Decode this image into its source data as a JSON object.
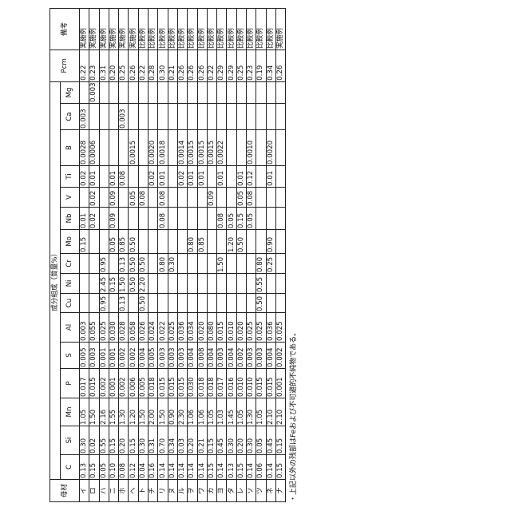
{
  "table": {
    "base_header": "母材",
    "group_header": "成分組成（質量%）",
    "columns": [
      "C",
      "Si",
      "Mn",
      "P",
      "S",
      "Al",
      "Cu",
      "Ni",
      "Cr",
      "Mo",
      "Nb",
      "V",
      "Ti",
      "B",
      "Ca",
      "Mg"
    ],
    "pcm_header": "Pcm",
    "remark_header": "備考",
    "rows": [
      {
        "name": "イ",
        "v": [
          "0.13",
          "0.30",
          "1.05",
          "0.017",
          "0.005",
          "0.003",
          null,
          null,
          null,
          "0.15",
          "0.01",
          null,
          "0.02",
          "0.0028",
          "0.003",
          null
        ],
        "pcm": "0.22",
        "remark": "実施例"
      },
      {
        "name": "ロ",
        "v": [
          "0.15",
          "0.02",
          "1.50",
          "0.015",
          "0.003",
          "0.055",
          null,
          null,
          null,
          null,
          "0.02",
          "0.02",
          "0.01",
          "0.0006",
          null,
          "0.003"
        ],
        "pcm": "0.23",
        "remark": "実施例"
      },
      {
        "name": "ハ",
        "v": [
          "0.05",
          "0.55",
          "2.16",
          "0.002",
          "0.001",
          "0.025",
          "0.95",
          "2.45",
          "0.95",
          null,
          null,
          null,
          null,
          null,
          null,
          null
        ],
        "pcm": "0.31",
        "remark": "実施例"
      },
      {
        "name": "ニ",
        "v": [
          "0.10",
          "0.15",
          "1.55",
          "0.001",
          "0.001",
          "0.030",
          null,
          "0.15",
          null,
          "0.05",
          "0.09",
          "0.09",
          "0.01",
          null,
          null,
          null
        ],
        "pcm": "0.20",
        "remark": "実施例"
      },
      {
        "name": "ホ",
        "v": [
          "0.08",
          "0.20",
          "1.30",
          "0.002",
          "0.002",
          "0.028",
          "0.13",
          "1.50",
          "0.13",
          "0.85",
          null,
          null,
          "0.08",
          null,
          "0.003",
          null
        ],
        "pcm": "0.25",
        "remark": "実施例"
      },
      {
        "name": "ヘ",
        "v": [
          "0.12",
          "0.15",
          "1.20",
          "0.006",
          "0.002",
          "0.058",
          null,
          "0.50",
          "0.50",
          "0.50",
          null,
          "0.05",
          null,
          "0.0015",
          null,
          null
        ],
        "pcm": "0.26",
        "remark": "実施例"
      },
      {
        "name": "ト",
        "v": [
          "0.04",
          "0.30",
          "1.50",
          "0.005",
          "0.004",
          "0.026",
          "0.50",
          "2.20",
          "0.50",
          null,
          null,
          "0.08",
          null,
          null,
          null,
          null
        ],
        "pcm": "0.22",
        "remark": "比較例"
      },
      {
        "name": "チ",
        "v": [
          "0.16",
          "0.31",
          "2.00",
          "0.018",
          "0.005",
          "0.024",
          null,
          null,
          null,
          null,
          null,
          null,
          "0.02",
          "0.0020",
          null,
          null
        ],
        "pcm": "0.28",
        "remark": "比較例"
      },
      {
        "name": "リ",
        "v": [
          "0.14",
          "0.70",
          "1.50",
          "0.015",
          "0.003",
          "0.022",
          null,
          null,
          "0.80",
          null,
          "0.08",
          "0.08",
          "0.01",
          "0.0018",
          null,
          null
        ],
        "pcm": "0.30",
        "remark": "比較例"
      },
      {
        "name": "ヌ",
        "v": [
          "0.14",
          "0.34",
          "0.90",
          "0.015",
          "0.003",
          "0.025",
          null,
          null,
          "0.30",
          null,
          null,
          null,
          null,
          null,
          null,
          null
        ],
        "pcm": "0.21",
        "remark": "比較例"
      },
      {
        "name": "ル",
        "v": [
          "0.14",
          "0.03",
          "2.30",
          "0.015",
          "0.003",
          "0.036",
          null,
          null,
          null,
          null,
          null,
          null,
          "0.02",
          "0.0014",
          null,
          null
        ],
        "pcm": "0.26",
        "remark": "比較例"
      },
      {
        "name": "ヲ",
        "v": [
          "0.14",
          "0.20",
          "1.06",
          "0.030",
          "0.004",
          "0.034",
          null,
          null,
          null,
          "0.80",
          null,
          null,
          "0.01",
          "0.0015",
          null,
          null
        ],
        "pcm": "0.26",
        "remark": "比較例"
      },
      {
        "name": "ワ",
        "v": [
          "0.14",
          "0.21",
          "1.06",
          "0.018",
          "0.008",
          "0.020",
          null,
          null,
          null,
          "0.85",
          null,
          null,
          "0.01",
          "0.0015",
          null,
          null
        ],
        "pcm": "0.26",
        "remark": "比較例"
      },
      {
        "name": "カ",
        "v": [
          "0.15",
          "0.15",
          "1.05",
          "0.018",
          "0.004",
          "0.080",
          null,
          null,
          null,
          null,
          null,
          "0.09",
          null,
          "0.0015",
          null,
          null
        ],
        "pcm": "0.22",
        "remark": "比較例"
      },
      {
        "name": "ヨ",
        "v": [
          "0.14",
          "0.45",
          "1.03",
          "0.017",
          "0.003",
          "0.015",
          null,
          null,
          "1.50",
          null,
          "0.08",
          null,
          "0.01",
          "0.0022",
          null,
          null
        ],
        "pcm": "0.29",
        "remark": "比較例"
      },
      {
        "name": "タ",
        "v": [
          "0.13",
          "0.30",
          "1.45",
          "0.016",
          "0.004",
          "0.010",
          null,
          null,
          null,
          "1.20",
          "0.05",
          null,
          null,
          null,
          null,
          null
        ],
        "pcm": "0.29",
        "remark": "比較例"
      },
      {
        "name": "レ",
        "v": [
          "0.15",
          "0.20",
          "1.05",
          "0.010",
          "0.002",
          "0.020",
          null,
          null,
          null,
          "0.50",
          "0.15",
          "0.05",
          "0.01",
          null,
          null,
          null
        ],
        "pcm": "0.25",
        "remark": "比較例"
      },
      {
        "name": "ソ",
        "v": [
          "0.14",
          "0.30",
          "1.30",
          "0.010",
          "0.003",
          "0.025",
          null,
          null,
          null,
          null,
          "0.05",
          "0.08",
          "0.12",
          "0.0010",
          null,
          null
        ],
        "pcm": "0.23",
        "remark": "比較例"
      },
      {
        "name": "ツ",
        "v": [
          "0.06",
          "0.05",
          "1.05",
          "0.015",
          "0.003",
          "0.025",
          "0.50",
          "0.55",
          "0.80",
          null,
          null,
          null,
          null,
          null,
          null,
          null
        ],
        "pcm": "0.19",
        "remark": "比較例"
      },
      {
        "name": "ネ",
        "v": [
          "0.14",
          "0.45",
          "2.10",
          "0.015",
          "0.004",
          "0.036",
          null,
          null,
          "0.25",
          "0.90",
          null,
          null,
          "0.01",
          "0.0020",
          null,
          null
        ],
        "pcm": "0.34",
        "remark": "比較例"
      },
      {
        "name": "ナ",
        "v": [
          "0.15",
          "0.15",
          "2.10",
          "0.001",
          "0.002",
          "0.025",
          null,
          null,
          null,
          null,
          null,
          null,
          null,
          null,
          null,
          null
        ],
        "pcm": "0.26",
        "remark": "実施例"
      }
    ]
  },
  "footnote": "・上記以外の残部はFeおよび不可避的不純物である。"
}
